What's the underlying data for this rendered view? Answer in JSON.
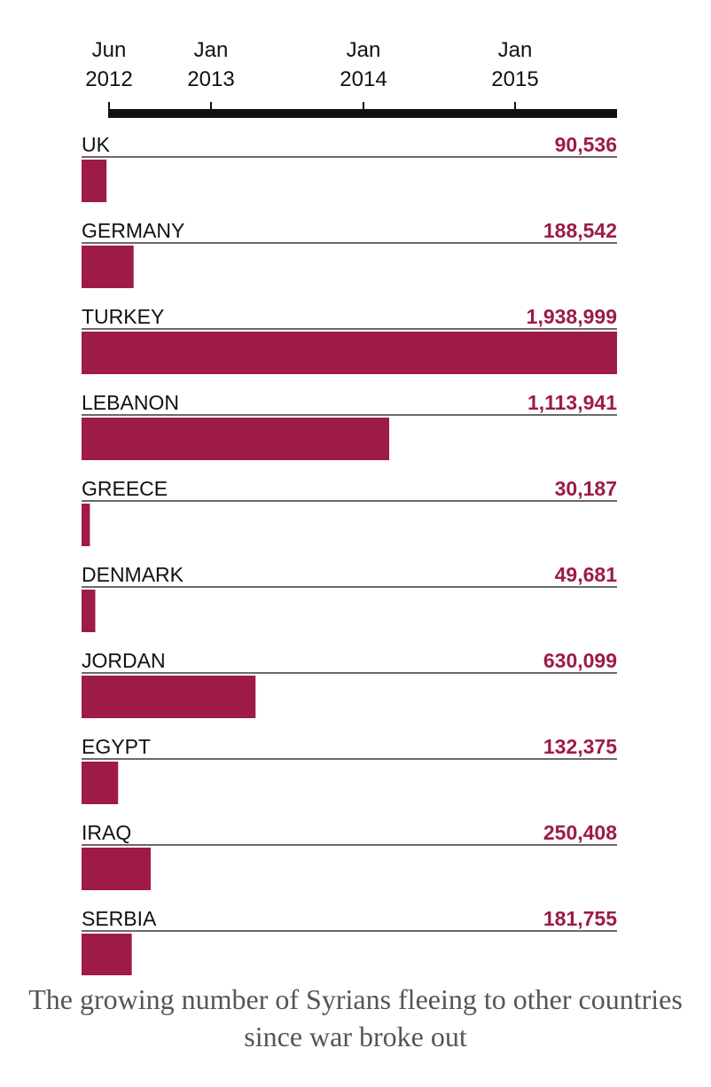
{
  "caption": "The growing number of Syrians fleeing to other countries since war broke out",
  "colors": {
    "bar": "#9e1b47",
    "value_text": "#9e1b47",
    "rule": "#111111"
  },
  "chart_data": {
    "type": "bar",
    "orientation": "horizontal",
    "categories": [
      "UK",
      "GERMANY",
      "TURKEY",
      "LEBANON",
      "GREECE",
      "DENMARK",
      "JORDAN",
      "EGYPT",
      "IRAQ",
      "SERBIA"
    ],
    "values": [
      90536,
      188542,
      1938999,
      1113941,
      30187,
      49681,
      630099,
      132375,
      250408,
      181755
    ],
    "value_labels": [
      "90,536",
      "188,542",
      "1,938,999",
      "1,113,941",
      "30,187",
      "49,681",
      "630,099",
      "132,375",
      "250,408",
      "181,755"
    ],
    "xlim": [
      0,
      1938999
    ],
    "timeline": {
      "ticks": [
        {
          "line1": "Jun",
          "line2": "2012"
        },
        {
          "line1": "Jan",
          "line2": "2013"
        },
        {
          "line1": "Jan",
          "line2": "2014"
        },
        {
          "line1": "Jan",
          "line2": "2015"
        }
      ]
    },
    "title": "",
    "xlabel": "",
    "ylabel": ""
  }
}
